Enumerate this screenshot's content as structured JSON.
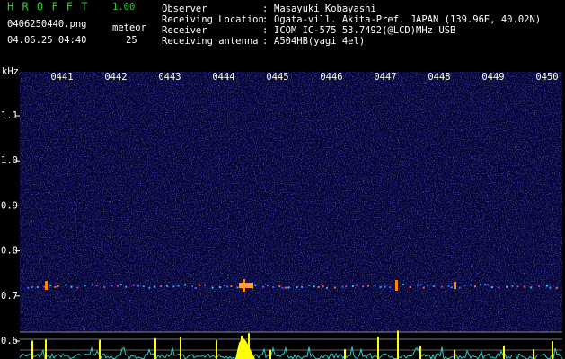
{
  "header": {
    "program": "H R O F F T",
    "version": "1.00",
    "file": "0406250440.png",
    "datetime": "04.06.25 04:40",
    "meteor_label": "meteor",
    "meteor_count": "25"
  },
  "separator": ":",
  "info": [
    {
      "label": "Observer",
      "value": "Masayuki Kobayashi"
    },
    {
      "label": "Receiving Location",
      "value": "Ogata-vill. Akita-Pref. JAPAN (139.96E, 40.02N)"
    },
    {
      "label": "Receiver",
      "value": "ICOM IC-575 53.7492(@LCD)MHz USB"
    },
    {
      "label": "Receiving antenna",
      "value": "A504HB(yagi 4el)"
    }
  ],
  "spectrogram": {
    "y_unit": "kHz",
    "y_labels": [
      "1.1",
      "1.0",
      "0.9",
      "0.8",
      "0.7",
      "0.6"
    ],
    "time_labels": [
      "0441",
      "0442",
      "0443",
      "0444",
      "0445",
      "0446",
      "0447",
      "0448",
      "0449",
      "0450"
    ]
  }
}
